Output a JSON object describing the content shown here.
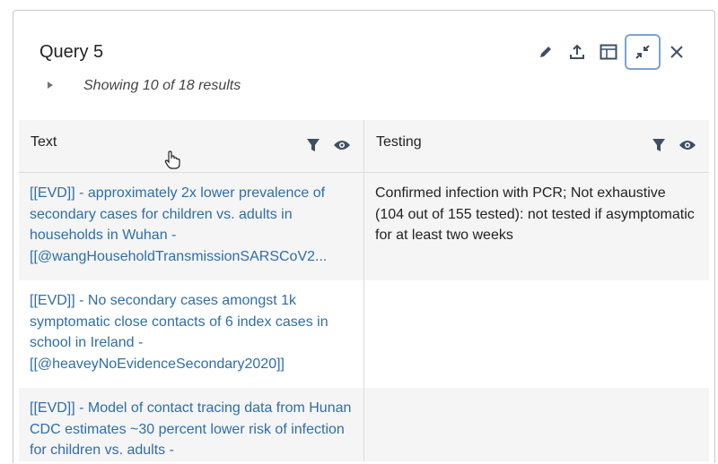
{
  "query": {
    "title": "Query 5",
    "summary": "Showing 10 of 18 results",
    "toolbar": [
      {
        "icon": "pencil-icon",
        "label": "edit"
      },
      {
        "icon": "upload-icon",
        "label": "export"
      },
      {
        "icon": "layout-icon",
        "label": "layout"
      },
      {
        "icon": "minimize-icon",
        "label": "minimize",
        "active": true
      },
      {
        "icon": "close-icon",
        "label": "close"
      }
    ]
  },
  "table": {
    "columns": [
      "Text",
      "Testing"
    ],
    "rows": [
      {
        "text": [
          "[[EVD]] - approximately 2x lower prevalence of secondary cases for children vs. adults in households in Wuhan -",
          "[[@wangHouseholdTransmissionSARSCoV2..."
        ],
        "testing": "Confirmed infection with PCR; Not exhaustive (104 out of 155 tested): not tested if asymptomatic for at least two weeks"
      },
      {
        "text": [
          "[[EVD]] - No secondary cases amongst 1k symptomatic close contacts of 6 index cases in school in Ireland -",
          "[[@heaveyNoEvidenceSecondary2020]]"
        ],
        "testing": ""
      },
      {
        "text": [
          "[[EVD]] - Model of contact tracing data from Hunan CDC estimates ~30 percent lower risk of infection for children vs. adults -",
          ""
        ],
        "testing": ""
      }
    ]
  },
  "colors": {
    "link": "#2f6ea8",
    "icon": "#3d4f63",
    "active_border": "#7aa3cf",
    "header_bg": "#f5f5f5"
  }
}
